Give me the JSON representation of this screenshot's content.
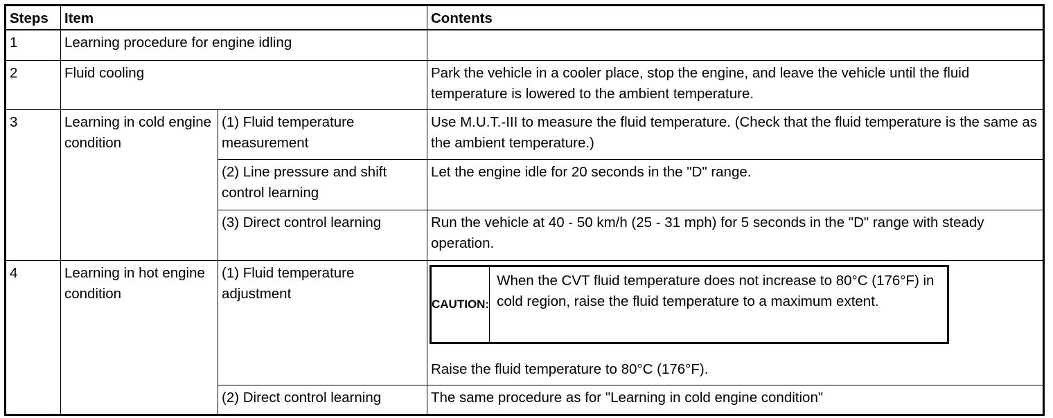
{
  "headers": {
    "steps": "Steps",
    "item": "Item",
    "contents": "Contents"
  },
  "rows": [
    {
      "step": "1",
      "item": "Learning procedure for engine idling",
      "contents": ""
    },
    {
      "step": "2",
      "item": "Fluid cooling",
      "contents": "Park the vehicle in a cooler place, stop the engine, and leave the vehicle until the fluid temperature is lowered to the ambient temperature."
    },
    {
      "step": "3",
      "item": "Learning in cold engine condition",
      "subs": [
        {
          "sub": "(1) Fluid temperature measurement",
          "contents": "Use M.U.T.-III to measure the fluid temperature. (Check that the fluid temperature is the same as the ambient temperature.)"
        },
        {
          "sub": "(2) Line pressure and shift control learning",
          "contents": "Let the engine idle for 20 seconds in the \"D\" range."
        },
        {
          "sub": "(3) Direct control learning",
          "contents": "Run the vehicle at 40 - 50 km/h (25 - 31 mph) for 5 seconds in the \"D\" range with steady operation."
        }
      ]
    },
    {
      "step": "4",
      "item": "Learning in hot engine condition",
      "subs": [
        {
          "sub": "(1) Fluid temperature adjustment",
          "caution_label": "CAUTION:",
          "caution_text": "When the CVT fluid temperature does not increase to 80°C (176°F) in cold region, raise the fluid temperature to a maximum extent.",
          "contents": "Raise the fluid temperature to 80°C (176°F)."
        },
        {
          "sub": "(2) Direct control learning",
          "contents": "The same procedure as for \"Learning in cold engine condition\""
        }
      ]
    }
  ]
}
